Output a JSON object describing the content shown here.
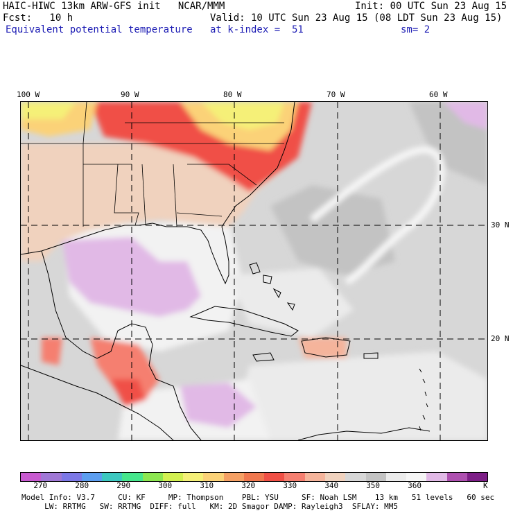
{
  "header": {
    "line1_left": "HAIC-HIWC 13km ARW-GFS init   NCAR/MMM",
    "line1_right": "Init: 00 UTC Sun 23 Aug 15",
    "line2_left": "Fcst:   10 h",
    "line2_right": "Valid: 10 UTC Sun 23 Aug 15 (08 LDT Sun 23 Aug 15)",
    "field": "Equivalent potential temperature",
    "level": "at k-index =  51",
    "smooth": "sm= 2"
  },
  "map": {
    "lon_labels": [
      "100 W",
      "90 W",
      "80 W",
      "70 W",
      "60 W"
    ],
    "lat_labels": [
      "30 N",
      "20 N"
    ],
    "region": "Gulf of Mexico, Caribbean and western Atlantic"
  },
  "colorbar": {
    "unit": "K",
    "tick_labels": [
      "270",
      "280",
      "290",
      "300",
      "310",
      "320",
      "330",
      "340",
      "350",
      "360"
    ],
    "colors": [
      "#c85ad0",
      "#a078d6",
      "#7c78e6",
      "#5c9ef0",
      "#3cc8c0",
      "#46e68c",
      "#8ce650",
      "#d2f050",
      "#f5f078",
      "#fbd278",
      "#f5a064",
      "#f0784f",
      "#f05046",
      "#f57f70",
      "#f5b49b",
      "#f0d2be",
      "#d7d7d7",
      "#c3c3c3",
      "#ebebeb",
      "#f5f5f5",
      "#e1b9e6",
      "#ae50b0",
      "#7d1e87"
    ]
  },
  "model_info": {
    "line1": "Model Info: V3.7     CU: KF     MP: Thompson    PBL: YSU     SF: Noah LSM    13 km   51 levels   60 sec",
    "line2": "     LW: RRTMG   SW: RRTMG  DIFF: full   KM: 2D Smagor DAMP: Rayleigh3  SFLAY: MM5"
  }
}
